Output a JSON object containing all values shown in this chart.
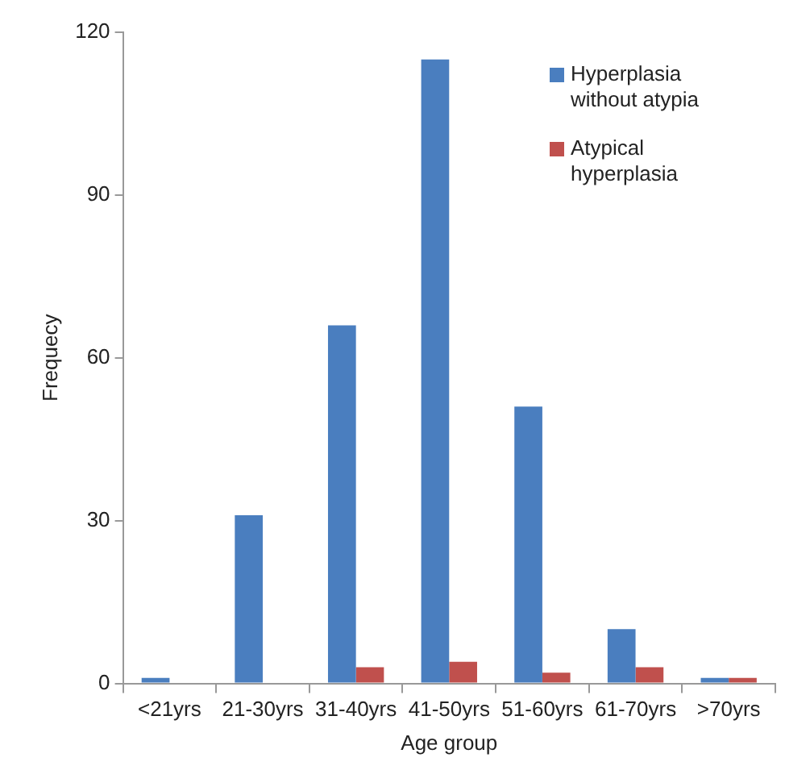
{
  "chart_data": {
    "type": "bar",
    "xlabel": "Age group",
    "ylabel": "Frequecy",
    "categories": [
      "<21yrs",
      "21-30yrs",
      "31-40yrs",
      "41-50yrs",
      "51-60yrs",
      "61-70yrs",
      ">70yrs"
    ],
    "series": [
      {
        "name": "Hyperplasia without atypia",
        "color": "#4a7ebf",
        "values": [
          1,
          31,
          66,
          115,
          51,
          10,
          1
        ]
      },
      {
        "name": "Atypical hyperplasia",
        "color": "#c0504d",
        "values": [
          0,
          0,
          3,
          4,
          2,
          3,
          1
        ]
      }
    ],
    "ylim": [
      0,
      120
    ],
    "yticks": [
      0,
      30,
      60,
      90,
      120
    ],
    "grid": false,
    "legend": "top right"
  }
}
